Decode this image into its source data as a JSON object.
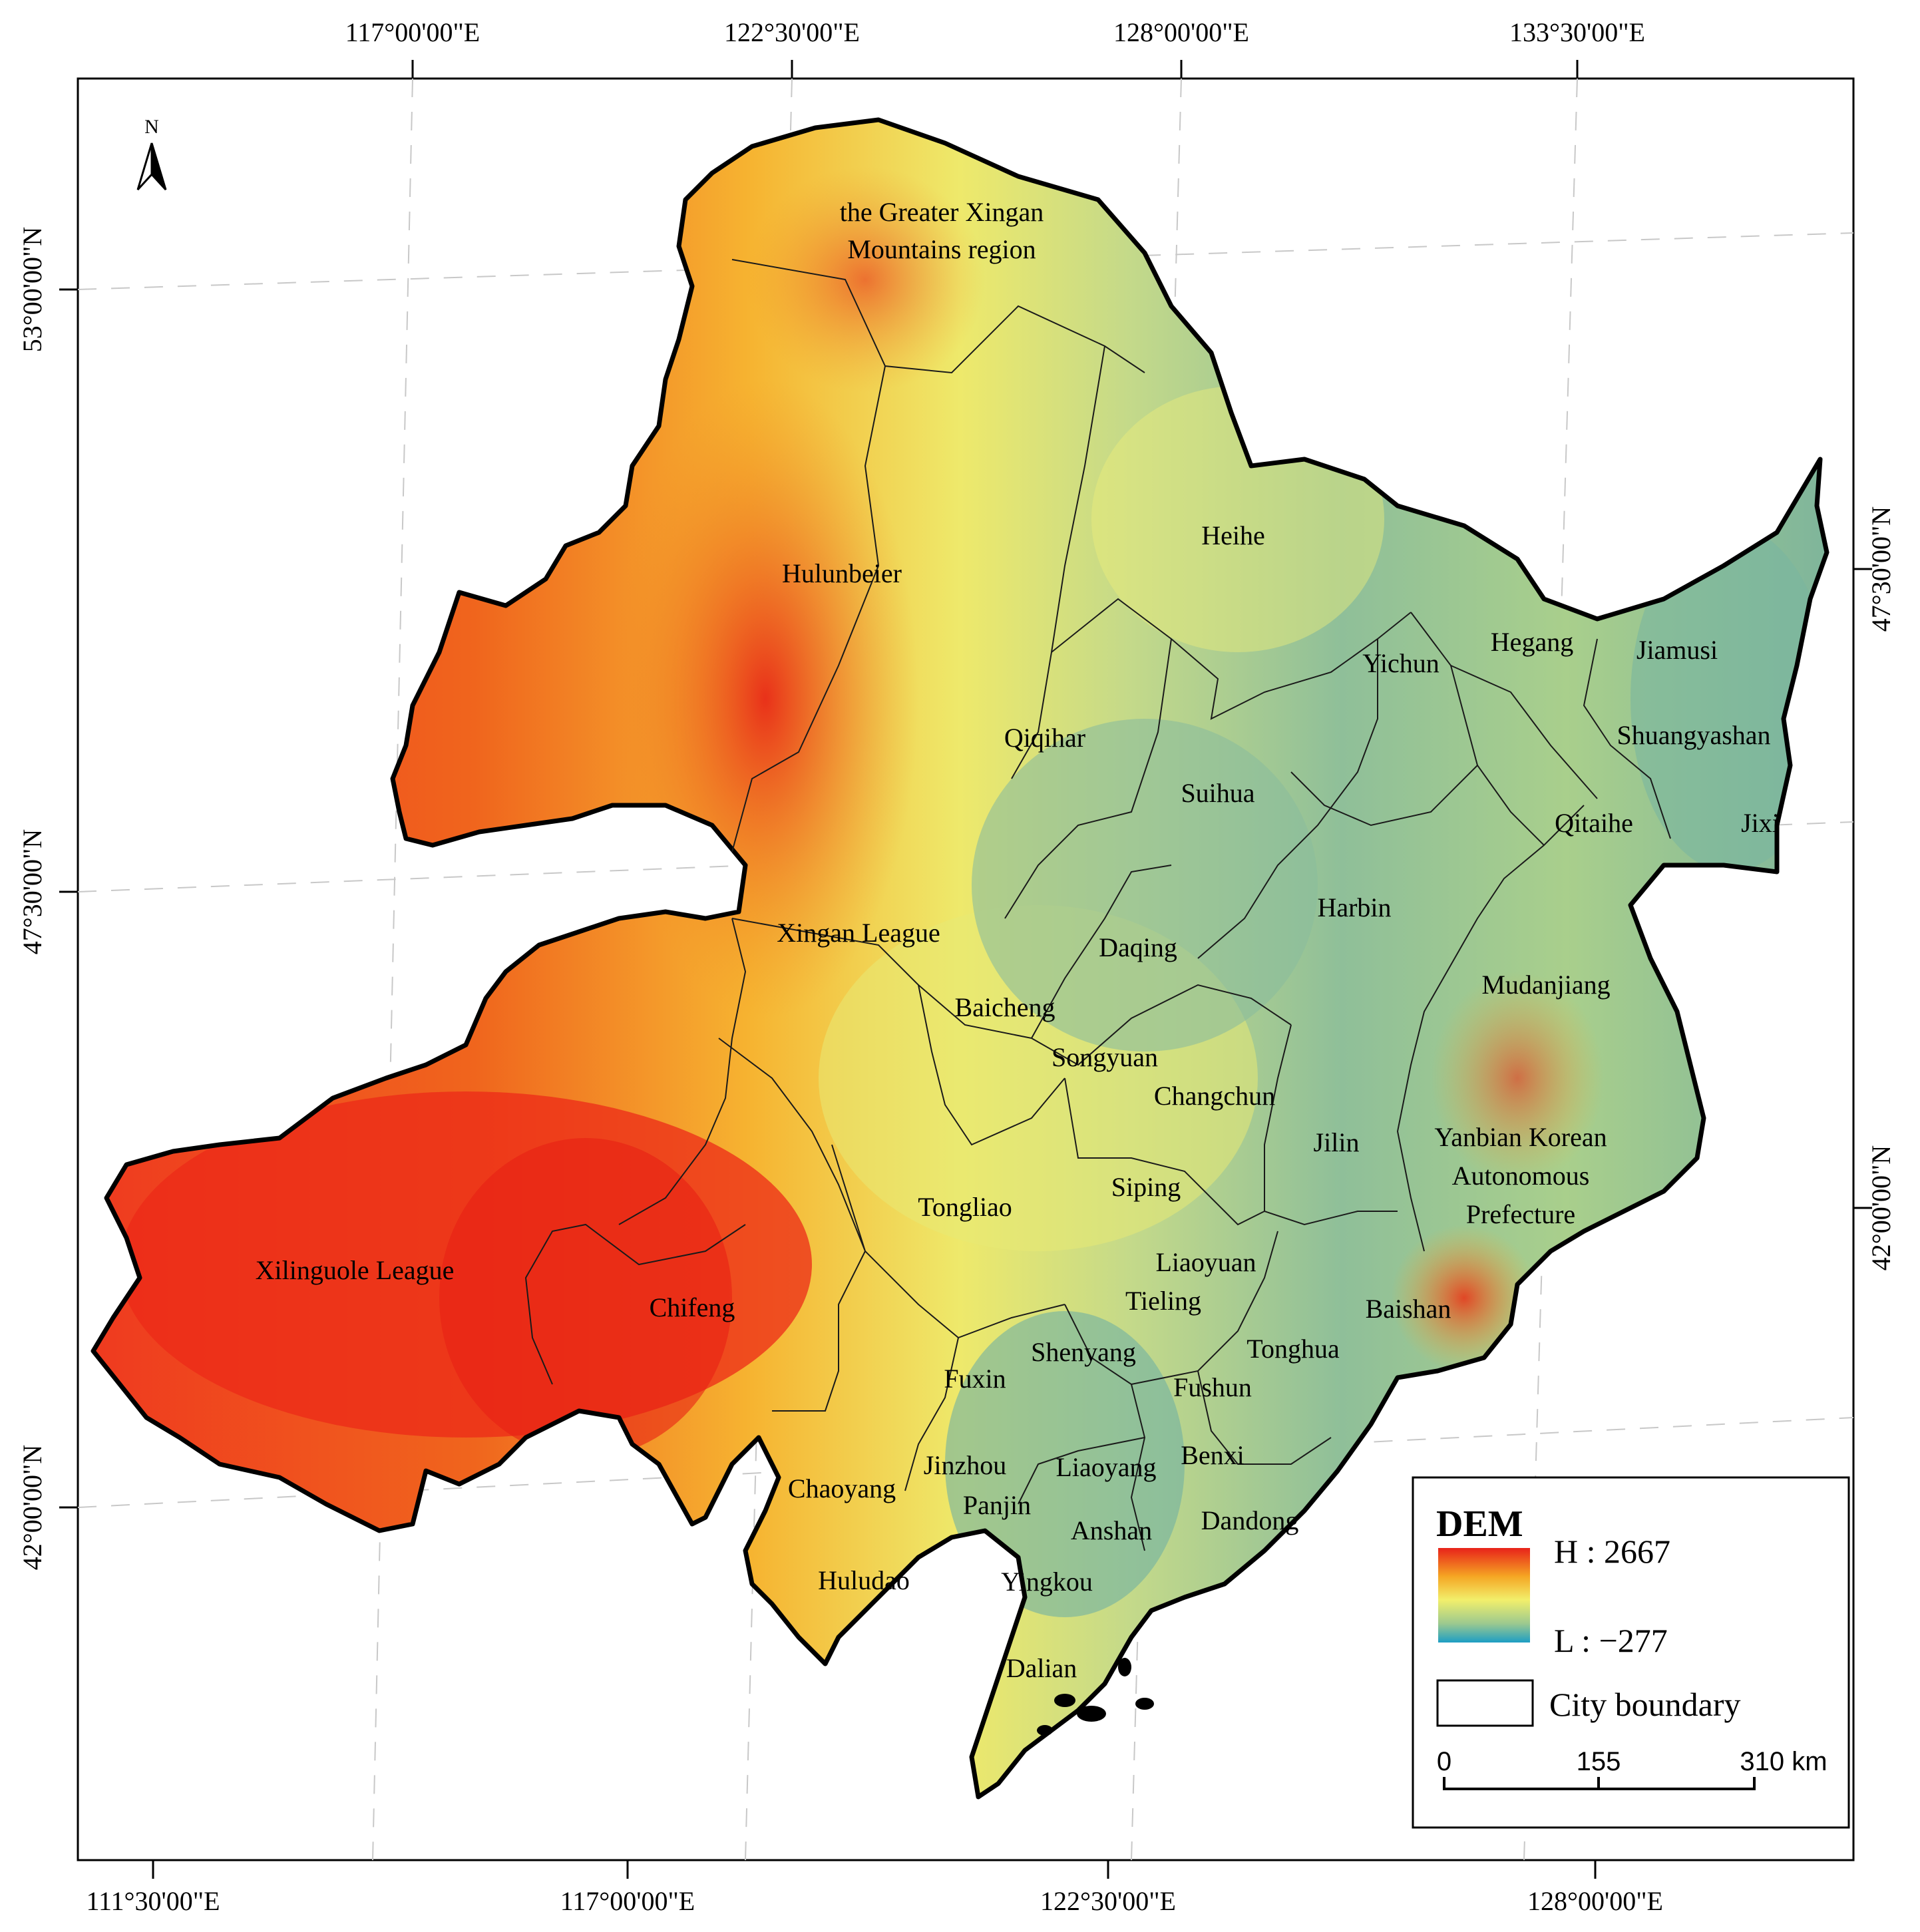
{
  "map": {
    "top_labels": [
      "117°00'00\"E",
      "122°30'00\"E",
      "128°00'00\"E",
      "133°30'00\"E"
    ],
    "bottom_labels": [
      "111°30'00\"E",
      "117°00'00\"E",
      "122°30'00\"E",
      "128°00'00\"E"
    ],
    "left_labels": [
      "53°00'00\"N",
      "47°30'00\"N",
      "42°00'00\"N"
    ],
    "right_labels": [
      "47°30'00\"N",
      "42°00'00\"N"
    ],
    "north_arrow": "N",
    "regions": [
      {
        "name": "the Greater Xingan"
      },
      {
        "name": "Mountains region"
      },
      {
        "name": "Hulunbeier"
      },
      {
        "name": "Heihe"
      },
      {
        "name": "Yichun"
      },
      {
        "name": "Hegang"
      },
      {
        "name": "Jiamusi"
      },
      {
        "name": "Qiqihar"
      },
      {
        "name": "Shuangyashan"
      },
      {
        "name": "Suihua"
      },
      {
        "name": "Qitaihe"
      },
      {
        "name": "Jixi"
      },
      {
        "name": "Harbin"
      },
      {
        "name": "Xingan League"
      },
      {
        "name": "Daqing"
      },
      {
        "name": "Mudanjiang"
      },
      {
        "name": "Baicheng"
      },
      {
        "name": "Songyuan"
      },
      {
        "name": "Changchun"
      },
      {
        "name": "Jilin"
      },
      {
        "name": "Yanbian Korean"
      },
      {
        "name": "Autonomous"
      },
      {
        "name": "Prefecture"
      },
      {
        "name": "Siping"
      },
      {
        "name": "Tongliao"
      },
      {
        "name": "Xilinguole League"
      },
      {
        "name": "Liaoyuan"
      },
      {
        "name": "Chifeng"
      },
      {
        "name": "Tieling"
      },
      {
        "name": "Baishan"
      },
      {
        "name": "Shenyang"
      },
      {
        "name": "Tonghua"
      },
      {
        "name": "Fuxin"
      },
      {
        "name": "Fushun"
      },
      {
        "name": "Jinzhou"
      },
      {
        "name": "Liaoyang"
      },
      {
        "name": "Benxi"
      },
      {
        "name": "Chaoyang"
      },
      {
        "name": "Panjin"
      },
      {
        "name": "Anshan"
      },
      {
        "name": "Dandong"
      },
      {
        "name": "Huludao"
      },
      {
        "name": "Yingkou"
      },
      {
        "name": "Dalian"
      }
    ]
  },
  "legend": {
    "title": "DEM",
    "high_label": "H : 2667",
    "low_label": "L : −277",
    "boundary_label": "City boundary",
    "colors": {
      "high": "#e8221a",
      "mid_high": "#f5a623",
      "mid": "#f2ef6b",
      "mid_low": "#9cc98f",
      "low": "#1d9ec4"
    }
  },
  "scale_bar": {
    "ticks": [
      "0",
      "155",
      "310 km"
    ]
  }
}
